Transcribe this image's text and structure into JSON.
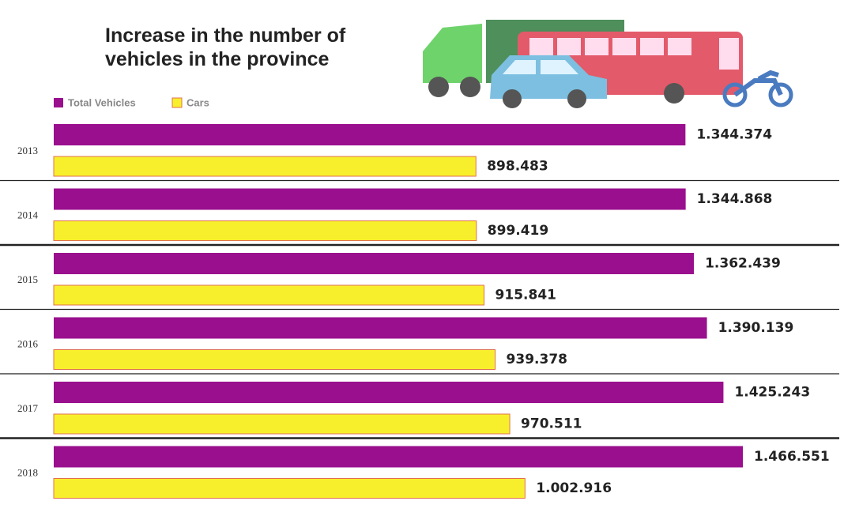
{
  "chart_data": {
    "type": "hbar",
    "title": "Increase in the number of vehicles in the province",
    "categories": [
      "2013",
      "2014",
      "2015",
      "2016",
      "2017",
      "2018"
    ],
    "series": [
      {
        "name": "Total Vehicles",
        "color": "#9a0f8e",
        "values": [
          1344374,
          1344868,
          1362439,
          1390139,
          1425243,
          1466551
        ],
        "value_labels": [
          "1.344.374",
          "1.344.868",
          "1.362.439",
          "1.390.139",
          "1.425.243",
          "1.466.551"
        ]
      },
      {
        "name": "Cars",
        "color": "#f8ef2c",
        "values": [
          898483,
          899419,
          915841,
          939378,
          970511,
          1002916
        ],
        "value_labels": [
          "898.483",
          "899.419",
          "915.841",
          "939.378",
          "970.511",
          "1.002.916"
        ]
      }
    ]
  }
}
